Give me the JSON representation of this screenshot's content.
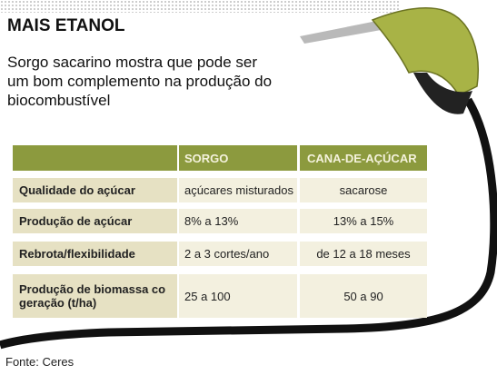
{
  "header": {
    "title": "MAIS ETANOL",
    "subtitle": "Sorgo sacarino mostra que pode ser um bom complemento na produção do biocombustível"
  },
  "table": {
    "columns": [
      "SORGO",
      "CANA-DE-AÇÚCAR"
    ],
    "rows": [
      [
        "Qualidade do açúcar",
        "açúcares misturados",
        "sacarose"
      ],
      [
        "Produção de açúcar",
        "8% a 13%",
        "13% a 15%"
      ],
      [
        "Rebrota/flexibilidade",
        "2 a 3 cortes/ano",
        "de 12 a 18 meses"
      ],
      [
        "Produção de biomassa co geração (t/ha)",
        "25 a 100",
        "50 a 90"
      ]
    ]
  },
  "source": "Fonte: Ceres"
}
